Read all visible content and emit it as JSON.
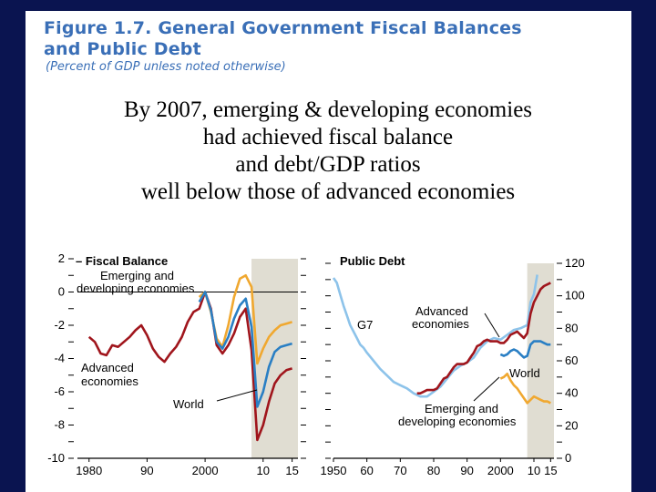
{
  "header": {
    "title_line1": "Figure 1.7.  General Government Fiscal Balances",
    "title_line2": "and Public Debt",
    "subtitle": "(Percent of GDP unless noted otherwise)"
  },
  "overlay": {
    "lines": [
      "By 2007, emerging & developing economies",
      "had achieved fiscal balance",
      "and debt/GDP ratios",
      "well below those of advanced economies"
    ]
  },
  "colors": {
    "advanced": "#a0151c",
    "emerging": "#f0a830",
    "world": "#2a7fc4",
    "g7": "#8dc3ea",
    "projection_shade": "#e0ddd2",
    "background": "#0a1450",
    "title": "#3a6fb7"
  },
  "chart_data": [
    {
      "type": "line",
      "title": "Fiscal Balance",
      "xlim": [
        1978,
        2016
      ],
      "ylim": [
        -10,
        2
      ],
      "xticks": [
        1980,
        1990,
        2000,
        2010,
        2015
      ],
      "xtick_labels": [
        "1980",
        "90",
        "2000",
        "10",
        "15"
      ],
      "yticks": [
        -10,
        -8,
        -6,
        -4,
        -2,
        0,
        2
      ],
      "projection_start": 2008,
      "annotations": [
        "Emerging and developing economies",
        "Advanced economies",
        "World"
      ],
      "series": [
        {
          "name": "Advanced economies",
          "x": [
            1980,
            1981,
            1982,
            1983,
            1984,
            1985,
            1986,
            1987,
            1988,
            1989,
            1990,
            1991,
            1992,
            1993,
            1994,
            1995,
            1996,
            1997,
            1998,
            1999,
            2000,
            2001,
            2002,
            2003,
            2004,
            2005,
            2006,
            2007,
            2008,
            2009,
            2010,
            2011,
            2012,
            2013,
            2014,
            2015
          ],
          "values": [
            -2.7,
            -3.0,
            -3.7,
            -3.8,
            -3.2,
            -3.3,
            -3.0,
            -2.7,
            -2.3,
            -2.0,
            -2.6,
            -3.4,
            -3.9,
            -4.2,
            -3.7,
            -3.3,
            -2.7,
            -1.8,
            -1.2,
            -1.0,
            0.0,
            -1.0,
            -3.2,
            -3.7,
            -3.2,
            -2.5,
            -1.5,
            -1.0,
            -3.5,
            -8.9,
            -8.0,
            -6.6,
            -5.5,
            -5.0,
            -4.7,
            -4.6
          ]
        },
        {
          "name": "Emerging and developing economies",
          "x": [
            1999,
            2000,
            2001,
            2002,
            2003,
            2004,
            2005,
            2006,
            2007,
            2008,
            2009,
            2010,
            2011,
            2012,
            2013,
            2014,
            2015
          ],
          "values": [
            -0.3,
            0.0,
            -1.2,
            -2.8,
            -3.3,
            -2.0,
            -0.3,
            0.8,
            1.0,
            0.3,
            -4.3,
            -3.4,
            -2.7,
            -2.3,
            -2.0,
            -1.9,
            -1.8
          ]
        },
        {
          "name": "World",
          "x": [
            1999,
            2000,
            2001,
            2002,
            2003,
            2004,
            2005,
            2006,
            2007,
            2008,
            2009,
            2010,
            2011,
            2012,
            2013,
            2014,
            2015
          ],
          "values": [
            -0.6,
            0.0,
            -1.1,
            -3.0,
            -3.4,
            -2.7,
            -1.6,
            -0.8,
            -0.4,
            -2.1,
            -6.9,
            -6.0,
            -4.5,
            -3.6,
            -3.3,
            -3.2,
            -3.1
          ]
        }
      ]
    },
    {
      "type": "line",
      "title": "Public Debt",
      "xlim": [
        1950,
        2016
      ],
      "ylim": [
        0,
        120
      ],
      "xticks": [
        1950,
        1960,
        1970,
        1980,
        1990,
        2000,
        2010,
        2015
      ],
      "xtick_labels": [
        "1950",
        "60",
        "70",
        "80",
        "90",
        "2000",
        "10",
        "15"
      ],
      "yticks": [
        0,
        20,
        40,
        60,
        80,
        100,
        120
      ],
      "projection_start": 2008,
      "annotations": [
        "G7",
        "Advanced economies",
        "World",
        "Emerging and developing economies"
      ],
      "series": [
        {
          "name": "G7",
          "x": [
            1950,
            1951,
            1952,
            1953,
            1954,
            1955,
            1956,
            1957,
            1958,
            1959,
            1960,
            1962,
            1964,
            1966,
            1968,
            1970,
            1972,
            1974,
            1976,
            1978,
            1980,
            1982,
            1984,
            1986,
            1988,
            1990,
            1992,
            1994,
            1996,
            1998,
            2000,
            2002,
            2004,
            2006,
            2008,
            2009,
            2010,
            2011
          ],
          "values": [
            111,
            108,
            101,
            94,
            88,
            82,
            78,
            74,
            70,
            68,
            65,
            60,
            55,
            51,
            47,
            45,
            43,
            40,
            38,
            38,
            41,
            44,
            49,
            54,
            57,
            59,
            62,
            68,
            72,
            74,
            73,
            76,
            79,
            80,
            82,
            96,
            101,
            113
          ]
        },
        {
          "name": "Advanced economies",
          "x": [
            1975,
            1976,
            1977,
            1978,
            1979,
            1980,
            1981,
            1982,
            1983,
            1984,
            1985,
            1986,
            1987,
            1988,
            1989,
            1990,
            1991,
            1992,
            1993,
            1994,
            1995,
            1996,
            1997,
            1998,
            1999,
            2000,
            2001,
            2002,
            2003,
            2004,
            2005,
            2006,
            2007,
            2008,
            2009,
            2010,
            2011,
            2012,
            2013,
            2014,
            2015
          ],
          "values": [
            40,
            40,
            41,
            42,
            42,
            42,
            43,
            46,
            49,
            50,
            53,
            56,
            58,
            58,
            58,
            59,
            62,
            65,
            69,
            70,
            72,
            73,
            72,
            72,
            72,
            71,
            71,
            73,
            76,
            77,
            78,
            76,
            74,
            77,
            89,
            96,
            100,
            104,
            106,
            107,
            108
          ]
        },
        {
          "name": "World",
          "x": [
            2000,
            2001,
            2002,
            2003,
            2004,
            2005,
            2006,
            2007,
            2008,
            2009,
            2010,
            2011,
            2012,
            2013,
            2014,
            2015
          ],
          "values": [
            64,
            63,
            64,
            66,
            67,
            66,
            64,
            62,
            63,
            70,
            72,
            72,
            72,
            71,
            70,
            70
          ]
        },
        {
          "name": "Emerging and developing economies",
          "x": [
            2000,
            2001,
            2002,
            2003,
            2004,
            2005,
            2006,
            2007,
            2008,
            2009,
            2010,
            2011,
            2012,
            2013,
            2014,
            2015
          ],
          "values": [
            49,
            50,
            52,
            48,
            45,
            43,
            40,
            37,
            34,
            36,
            38,
            37,
            36,
            35,
            35,
            34
          ]
        }
      ]
    }
  ]
}
